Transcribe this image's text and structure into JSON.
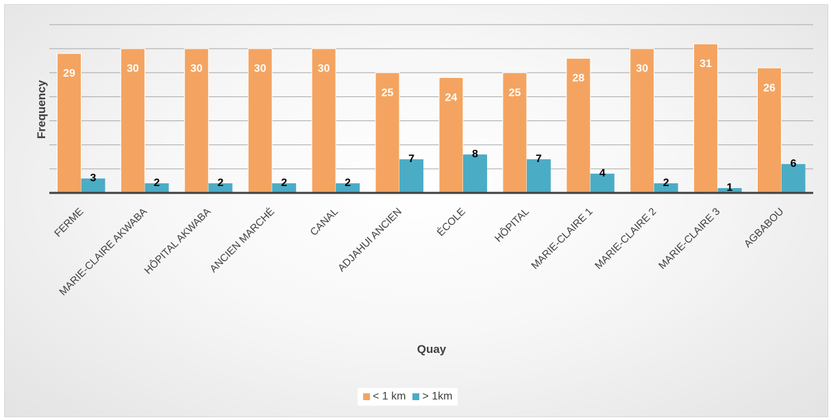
{
  "chart_data": {
    "type": "bar",
    "title": "",
    "xlabel": "Quay",
    "ylabel": "Frequency",
    "ylim": [
      0,
      35
    ],
    "grid": true,
    "legend_position": "bottom",
    "categories": [
      "FERME",
      "MARIE-CLAIRE AKWABA",
      "HÔPITAL AKWABA",
      "ANCIEN MARCHÉ",
      "CANAL",
      "ADJAHUI ANCIEN",
      "ÉCOLE",
      "HÔPITAL",
      "MARIE-CLAIRE 1",
      "MARIE-CLAIRE 2",
      "MARIE-CLAIRE 3",
      "AGBABOU"
    ],
    "series": [
      {
        "name": "< 1 km",
        "color": "#F4A460",
        "values": [
          29,
          30,
          30,
          30,
          30,
          25,
          24,
          25,
          28,
          30,
          31,
          26
        ]
      },
      {
        "name": "> 1km",
        "color": "#4BACC6",
        "values": [
          3,
          2,
          2,
          2,
          2,
          7,
          8,
          7,
          4,
          2,
          1,
          6
        ]
      }
    ]
  }
}
